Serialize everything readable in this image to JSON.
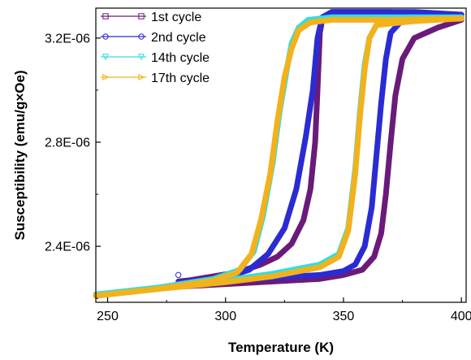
{
  "chart_data": {
    "type": "line",
    "xlabel": "Temperature (K)",
    "ylabel": "Susceptibility (emu/g×Oe)",
    "xlim": [
      245,
      402
    ],
    "ylim": [
      2.185e-06,
      3.315e-06
    ],
    "x_ticks": [
      250,
      300,
      350,
      400
    ],
    "x_tick_labels": [
      "250",
      "300",
      "350",
      "400"
    ],
    "y_ticks": [
      2.4e-06,
      2.8e-06,
      3.2e-06
    ],
    "y_tick_labels": [
      "2.4E-06",
      "2.8E-06",
      "3.2E-06"
    ],
    "legend_position": "top-left",
    "grid": false,
    "series": [
      {
        "name": "1st cycle",
        "color": "#6a1b7a",
        "marker": "square",
        "heating": [
          [
            280,
            2.245e-06
          ],
          [
            300,
            2.255e-06
          ],
          [
            320,
            2.265e-06
          ],
          [
            340,
            2.275e-06
          ],
          [
            350,
            2.29e-06
          ],
          [
            358,
            2.31e-06
          ],
          [
            363,
            2.36e-06
          ],
          [
            366,
            2.45e-06
          ],
          [
            368,
            2.6e-06
          ],
          [
            370,
            2.8e-06
          ],
          [
            372,
            2.98e-06
          ],
          [
            375,
            3.12e-06
          ],
          [
            380,
            3.2e-06
          ],
          [
            390,
            3.24e-06
          ],
          [
            400,
            3.27e-06
          ]
        ],
        "cooling": [
          [
            400,
            3.28e-06
          ],
          [
            385,
            3.29e-06
          ],
          [
            370,
            3.3e-06
          ],
          [
            345,
            3.3e-06
          ],
          [
            341,
            3.27e-06
          ],
          [
            340,
            3.22e-06
          ],
          [
            339,
            3e-06
          ],
          [
            338,
            2.8e-06
          ],
          [
            336,
            2.62e-06
          ],
          [
            333,
            2.5e-06
          ],
          [
            328,
            2.41e-06
          ],
          [
            322,
            2.36e-06
          ],
          [
            315,
            2.33e-06
          ],
          [
            305,
            2.3e-06
          ],
          [
            295,
            2.285e-06
          ],
          [
            285,
            2.27e-06
          ],
          [
            280,
            2.265e-06
          ]
        ]
      },
      {
        "name": "2nd cycle",
        "color": "#2b2bd4",
        "marker": "circle",
        "heating": [
          [
            280,
            2.26e-06
          ],
          [
            300,
            2.27e-06
          ],
          [
            320,
            2.28e-06
          ],
          [
            340,
            2.29e-06
          ],
          [
            350,
            2.305e-06
          ],
          [
            355,
            2.33e-06
          ],
          [
            359,
            2.4e-06
          ],
          [
            362,
            2.55e-06
          ],
          [
            364,
            2.75e-06
          ],
          [
            366,
            2.95e-06
          ],
          [
            368,
            3.12e-06
          ],
          [
            370,
            3.22e-06
          ],
          [
            375,
            3.27e-06
          ],
          [
            400,
            3.28e-06
          ]
        ],
        "cooling": [
          [
            400,
            3.29e-06
          ],
          [
            380,
            3.3e-06
          ],
          [
            345,
            3.3e-06
          ],
          [
            341,
            3.28e-06
          ],
          [
            339,
            3.2e-06
          ],
          [
            337,
            3e-06
          ],
          [
            334,
            2.82e-06
          ],
          [
            330,
            2.62e-06
          ],
          [
            325,
            2.47e-06
          ],
          [
            318,
            2.37e-06
          ],
          [
            310,
            2.31e-06
          ],
          [
            300,
            2.28e-06
          ],
          [
            285,
            2.265e-06
          ],
          [
            280,
            2.26e-06
          ]
        ],
        "marker_point": [
          280,
          2.29e-06
        ]
      },
      {
        "name": "14th cycle",
        "color": "#33dde0",
        "marker": "triangle-down",
        "heating": [
          [
            245,
            2.215e-06
          ],
          [
            270,
            2.24e-06
          ],
          [
            300,
            2.27e-06
          ],
          [
            320,
            2.295e-06
          ],
          [
            340,
            2.33e-06
          ],
          [
            348,
            2.37e-06
          ],
          [
            352,
            2.47e-06
          ],
          [
            355,
            2.7e-06
          ],
          [
            357,
            2.92e-06
          ],
          [
            359,
            3.1e-06
          ],
          [
            361,
            3.2e-06
          ],
          [
            364,
            3.25e-06
          ],
          [
            380,
            3.27e-06
          ],
          [
            400,
            3.28e-06
          ]
        ],
        "cooling": [
          [
            400,
            3.28e-06
          ],
          [
            370,
            3.28e-06
          ],
          [
            345,
            3.28e-06
          ],
          [
            335,
            3.27e-06
          ],
          [
            331,
            3.24e-06
          ],
          [
            328,
            3.18e-06
          ],
          [
            326,
            3.08e-06
          ],
          [
            323,
            2.92e-06
          ],
          [
            320,
            2.72e-06
          ],
          [
            316,
            2.52e-06
          ],
          [
            312,
            2.38e-06
          ],
          [
            306,
            2.31e-06
          ],
          [
            295,
            2.275e-06
          ],
          [
            270,
            2.24e-06
          ],
          [
            245,
            2.215e-06
          ]
        ]
      },
      {
        "name": "17th cycle",
        "color": "#f2b21c",
        "marker": "triangle-right",
        "heating": [
          [
            245,
            2.21e-06
          ],
          [
            270,
            2.235e-06
          ],
          [
            300,
            2.262e-06
          ],
          [
            320,
            2.285e-06
          ],
          [
            340,
            2.32e-06
          ],
          [
            348,
            2.36e-06
          ],
          [
            352,
            2.46e-06
          ],
          [
            355,
            2.68e-06
          ],
          [
            357,
            2.9e-06
          ],
          [
            359,
            3.08e-06
          ],
          [
            361,
            3.2e-06
          ],
          [
            364,
            3.25e-06
          ],
          [
            380,
            3.265e-06
          ],
          [
            400,
            3.275e-06
          ]
        ],
        "cooling": [
          [
            400,
            3.275e-06
          ],
          [
            370,
            3.27e-06
          ],
          [
            345,
            3.27e-06
          ],
          [
            336,
            3.26e-06
          ],
          [
            331,
            3.23e-06
          ],
          [
            328,
            3.16e-06
          ],
          [
            325,
            3.05e-06
          ],
          [
            322,
            2.88e-06
          ],
          [
            319,
            2.68e-06
          ],
          [
            315,
            2.5e-06
          ],
          [
            311,
            2.37e-06
          ],
          [
            305,
            2.3e-06
          ],
          [
            295,
            2.268e-06
          ],
          [
            270,
            2.235e-06
          ],
          [
            245,
            2.21e-06
          ]
        ]
      }
    ]
  }
}
